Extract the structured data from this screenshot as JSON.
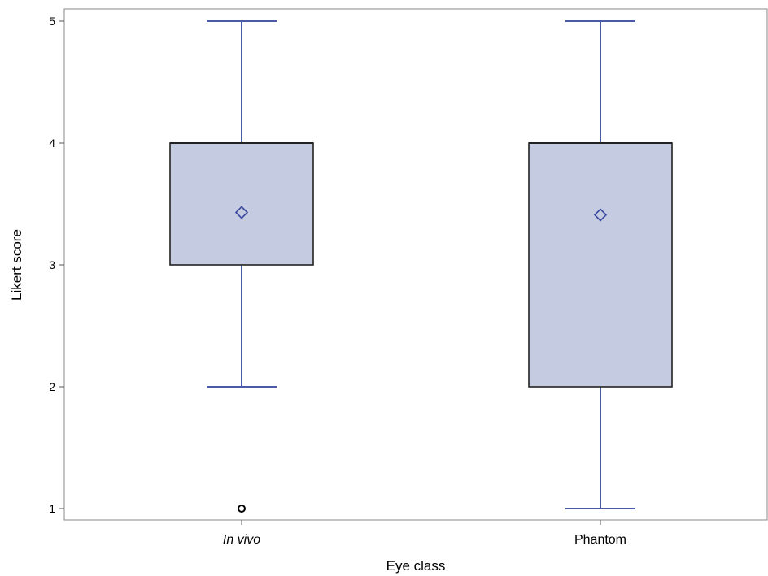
{
  "chart_data": {
    "type": "boxplot",
    "xlabel": "Eye class",
    "ylabel": "Likert score",
    "ylim": [
      1,
      5
    ],
    "yticks": [
      1,
      2,
      3,
      4,
      5
    ],
    "grid": false,
    "colors": {
      "box_fill": "#c5cbe0",
      "box_edge": "#222222",
      "whisker": "#4a5aa8",
      "mean_marker": "#3a4aa0",
      "outlier": "#000000"
    },
    "categories": [
      {
        "label": "In vivo",
        "italic": true,
        "min": 2,
        "q1": 3,
        "median": 4,
        "q3": 4,
        "max": 5,
        "mean": 3.43,
        "outliers": [
          1
        ]
      },
      {
        "label": "Phantom",
        "italic": false,
        "min": 1,
        "q1": 2,
        "median": 4,
        "q3": 4,
        "max": 5,
        "mean": 3.41,
        "outliers": []
      }
    ]
  }
}
